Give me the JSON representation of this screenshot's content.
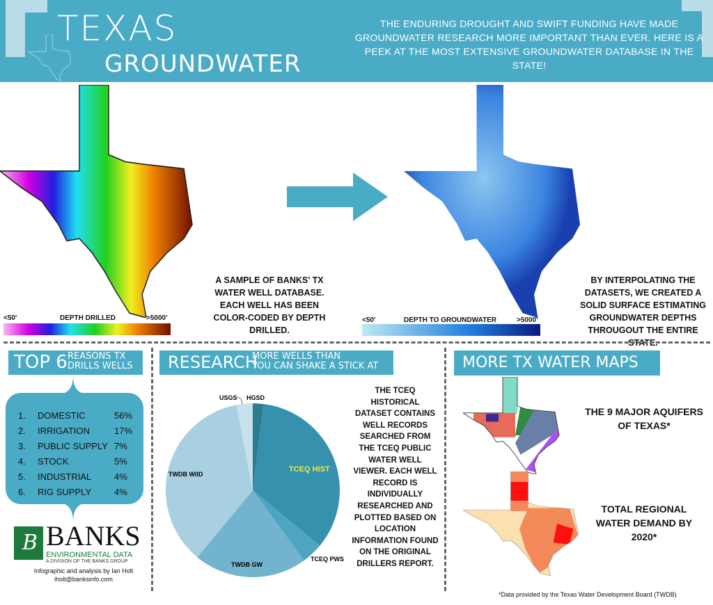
{
  "header": {
    "title_line1": "TEXAS",
    "title_line2": "GROUNDWATER",
    "intro": "THE ENDURING DROUGHT AND SWIFT FUNDING HAVE MADE GROUNDWATER RESEARCH MORE IMPORTANT THAN EVER. HERE IS A PEEK AT THE MOST EXTENSIVE GROUNDWATER DATABASE IN THE STATE!",
    "color": "#4aabc6"
  },
  "maps": {
    "left": {
      "caption": "A SAMPLE OF BANKS' TX WATER WELL DATABASE. EACH WELL HAS BEEN COLOR-CODED BY DEPTH DRILLED.",
      "legend_title": "DEPTH DRILLED",
      "legend_min": "<50'",
      "legend_max": ">5000'"
    },
    "right": {
      "caption": "BY INTERPOLATING THE DATASETS, WE CREATED A SOLID SURFACE ESTIMATING GROUNDWATER DEPTHS THROUGOUT THE ENTIRE STATE.",
      "legend_title": "DEPTH TO GROUNDWATER",
      "legend_min": "<50'",
      "legend_max": ">5000'"
    }
  },
  "top6": {
    "big": "TOP 6",
    "small1": "REASONS TX",
    "small2": "DRILLS WELLS",
    "items": [
      {
        "n": "1.",
        "label": "DOMESTIC",
        "pct": "56%"
      },
      {
        "n": "2.",
        "label": "IRRIGATION",
        "pct": "17%"
      },
      {
        "n": "3.",
        "label": "PUBLIC SUPPLY",
        "pct": "7%"
      },
      {
        "n": "4.",
        "label": "STOCK",
        "pct": "5%"
      },
      {
        "n": "5.",
        "label": "INDUSTRIAL",
        "pct": "4%"
      },
      {
        "n": "6.",
        "label": "RIG SUPPLY",
        "pct": "4%"
      }
    ]
  },
  "logo": {
    "name": "BANKS",
    "sub1": "ENVIRONMENTAL DATA",
    "sub2": "A DIVISION OF THE BANKS GROUP",
    "credit": "Infographic and analysis by Ian Holt",
    "email": "iholt@banksinfo.com"
  },
  "research": {
    "big": "RESEARCH",
    "small1": "MORE WELLS THAN",
    "small2": "YOU CAN SHAKE A STICK AT",
    "description": "THE TCEQ HISTORICAL DATASET CONTAINS WELL RECORDS SEARCHED FROM THE TCEQ PUBLIC WATER WELL VIEWER. EACH WELL RECORD IS INDIVIDUALLY RESEARCHED AND PLOTTED BASED ON LOCATION INFORMATION FOUND ON THE ORIGINAL DRILLERS REPORT."
  },
  "chart_data": {
    "type": "pie",
    "categories": [
      "HGSD",
      "TCEQ HIST",
      "TCEQ PWS",
      "TWDB GW",
      "TWDB WIID",
      "USGS"
    ],
    "values": [
      2,
      34,
      4,
      21,
      36,
      3
    ],
    "colors": [
      "#2d7b8f",
      "#3591ad",
      "#4ea5c2",
      "#72b4cf",
      "#a9d0e0",
      "#c8e2ec"
    ]
  },
  "more_maps": {
    "title": "MORE TX WATER MAPS",
    "aquifers_caption": "THE 9 MAJOR AQUIFERS OF TEXAS*",
    "demand_caption": "TOTAL REGIONAL WATER DEMAND BY 2020*"
  },
  "footnote": "*Data provided by the Texas Water Development Board (TWDB)"
}
